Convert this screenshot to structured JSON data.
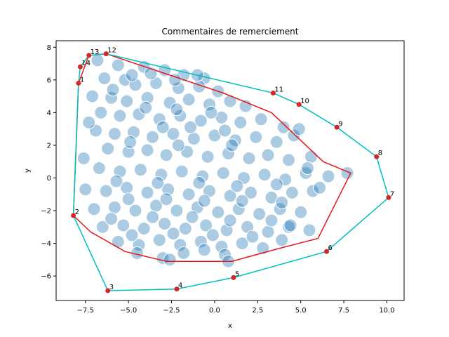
{
  "chart_data": {
    "type": "scatter",
    "title": "Commentaires de remerciement",
    "xlabel": "x",
    "ylabel": "y",
    "xlim": [
      -9.2,
      11.0
    ],
    "ylim": [
      -7.5,
      8.4
    ],
    "xticks": [
      -7.5,
      -5.0,
      -2.5,
      0.0,
      2.5,
      5.0,
      7.5,
      10.0
    ],
    "xtick_labels": [
      "−7.5",
      "−5.0",
      "−2.5",
      "0.0",
      "2.5",
      "5.0",
      "7.5",
      "10.0"
    ],
    "yticks": [
      -6,
      -4,
      -2,
      0,
      2,
      4,
      6,
      8
    ],
    "ytick_labels": [
      "−6",
      "−4",
      "−2",
      "0",
      "2",
      "4",
      "6",
      "8"
    ],
    "grid": false,
    "colors": {
      "scatter": "#1f77b4",
      "hull": "#00bfbf",
      "inner_path": "#e31a1c",
      "hull_points": "#d62728"
    },
    "hull_points": [
      {
        "label": "1",
        "x": -7.9,
        "y": 5.8
      },
      {
        "label": "2",
        "x": -8.2,
        "y": -2.3
      },
      {
        "label": "3",
        "x": -6.2,
        "y": -6.9
      },
      {
        "label": "4",
        "x": -2.2,
        "y": -6.8
      },
      {
        "label": "5",
        "x": 1.1,
        "y": -6.1
      },
      {
        "label": "6",
        "x": 6.5,
        "y": -4.5
      },
      {
        "label": "7",
        "x": 10.1,
        "y": -1.2
      },
      {
        "label": "8",
        "x": 9.4,
        "y": 1.3
      },
      {
        "label": "9",
        "x": 7.1,
        "y": 3.1
      },
      {
        "label": "10",
        "x": 4.9,
        "y": 4.5
      },
      {
        "label": "11",
        "x": 3.4,
        "y": 5.2
      },
      {
        "label": "12",
        "x": -6.3,
        "y": 7.6
      },
      {
        "label": "13",
        "x": -7.3,
        "y": 7.5
      },
      {
        "label": "14",
        "x": -7.8,
        "y": 6.8
      }
    ],
    "inner_path": [
      [
        -6.3,
        7.6
      ],
      [
        0.5,
        5.2
      ],
      [
        3.3,
        4.0
      ],
      [
        6.3,
        1.0
      ],
      [
        7.9,
        0.3
      ],
      [
        6.0,
        -3.7
      ],
      [
        3.8,
        -4.3
      ],
      [
        1.0,
        -5.1
      ],
      [
        -2.8,
        -5.1
      ],
      [
        -5.2,
        -4.5
      ],
      [
        -7.2,
        -3.3
      ],
      [
        -8.2,
        -2.3
      ],
      [
        -8.0,
        3.0
      ],
      [
        -7.9,
        5.8
      ],
      [
        -7.3,
        7.5
      ],
      [
        -6.3,
        7.6
      ]
    ],
    "scatter_points": [
      [
        -6.8,
        7.2
      ],
      [
        -5.6,
        6.9
      ],
      [
        -4.1,
        6.8
      ],
      [
        -2.9,
        6.6
      ],
      [
        -1.8,
        6.3
      ],
      [
        -0.6,
        6.1
      ],
      [
        -6.4,
        6.1
      ],
      [
        -5.2,
        6.0
      ],
      [
        -4.6,
        5.7
      ],
      [
        -3.4,
        5.8
      ],
      [
        -2.1,
        5.5
      ],
      [
        -0.9,
        5.6
      ],
      [
        0.2,
        5.3
      ],
      [
        -7.1,
        5.0
      ],
      [
        -6.0,
        4.9
      ],
      [
        -5.1,
        4.7
      ],
      [
        -3.9,
        4.9
      ],
      [
        -2.6,
        4.6
      ],
      [
        -1.5,
        4.8
      ],
      [
        -0.3,
        4.5
      ],
      [
        0.9,
        4.7
      ],
      [
        1.8,
        4.4
      ],
      [
        -6.6,
        4.0
      ],
      [
        -5.5,
        3.8
      ],
      [
        -4.4,
        3.9
      ],
      [
        -3.2,
        3.6
      ],
      [
        -2.0,
        3.8
      ],
      [
        -0.8,
        3.5
      ],
      [
        0.4,
        3.7
      ],
      [
        1.5,
        3.4
      ],
      [
        2.7,
        3.6
      ],
      [
        -6.9,
        2.9
      ],
      [
        -5.8,
        2.7
      ],
      [
        -4.7,
        2.8
      ],
      [
        -3.6,
        2.5
      ],
      [
        -2.4,
        2.7
      ],
      [
        -1.2,
        2.4
      ],
      [
        0.0,
        2.6
      ],
      [
        1.2,
        2.3
      ],
      [
        2.4,
        2.5
      ],
      [
        3.6,
        2.2
      ],
      [
        4.6,
        2.6
      ],
      [
        -6.2,
        1.8
      ],
      [
        -5.0,
        1.6
      ],
      [
        -3.9,
        1.7
      ],
      [
        -2.8,
        1.4
      ],
      [
        -1.6,
        1.6
      ],
      [
        -0.4,
        1.3
      ],
      [
        0.8,
        1.5
      ],
      [
        2.0,
        1.2
      ],
      [
        3.1,
        1.4
      ],
      [
        4.3,
        1.1
      ],
      [
        5.6,
        1.3
      ],
      [
        -6.7,
        0.6
      ],
      [
        -5.5,
        0.4
      ],
      [
        -4.3,
        0.5
      ],
      [
        -3.1,
        0.2
      ],
      [
        -1.9,
        0.4
      ],
      [
        -0.7,
        0.1
      ],
      [
        0.5,
        0.3
      ],
      [
        1.7,
        0.0
      ],
      [
        2.9,
        0.2
      ],
      [
        4.1,
        -0.1
      ],
      [
        5.3,
        0.3
      ],
      [
        6.6,
        0.1
      ],
      [
        7.7,
        0.3
      ],
      [
        -7.5,
        -0.7
      ],
      [
        -6.3,
        -0.8
      ],
      [
        -5.1,
        -0.6
      ],
      [
        -3.9,
        -0.9
      ],
      [
        -2.7,
        -0.7
      ],
      [
        -1.5,
        -1.0
      ],
      [
        -0.3,
        -0.8
      ],
      [
        0.9,
        -1.1
      ],
      [
        2.1,
        -0.9
      ],
      [
        3.3,
        -1.2
      ],
      [
        4.5,
        -0.9
      ],
      [
        5.7,
        -0.8
      ],
      [
        -7.0,
        -1.9
      ],
      [
        -5.8,
        -1.8
      ],
      [
        -4.6,
        -2.0
      ],
      [
        -3.4,
        -1.7
      ],
      [
        -2.2,
        -2.0
      ],
      [
        -1.0,
        -1.8
      ],
      [
        0.2,
        -2.1
      ],
      [
        1.4,
        -1.9
      ],
      [
        2.6,
        -2.2
      ],
      [
        3.8,
        -1.9
      ],
      [
        5.0,
        -2.1
      ],
      [
        -6.5,
        -3.0
      ],
      [
        -5.3,
        -2.9
      ],
      [
        -4.1,
        -3.1
      ],
      [
        -2.9,
        -2.8
      ],
      [
        -1.7,
        -3.1
      ],
      [
        -0.5,
        -2.9
      ],
      [
        0.7,
        -3.2
      ],
      [
        1.9,
        -3.0
      ],
      [
        3.1,
        -3.3
      ],
      [
        4.3,
        -3.0
      ],
      [
        5.5,
        -3.2
      ],
      [
        -5.6,
        -3.9
      ],
      [
        -4.4,
        -4.1
      ],
      [
        -3.2,
        -3.8
      ],
      [
        -2.0,
        -4.1
      ],
      [
        -0.8,
        -3.9
      ],
      [
        0.4,
        -4.2
      ],
      [
        1.6,
        -4.0
      ],
      [
        2.8,
        -4.3
      ],
      [
        3.9,
        -3.8
      ],
      [
        -4.5,
        -4.6
      ],
      [
        -3.0,
        -4.9
      ],
      [
        -1.8,
        -4.6
      ],
      [
        -0.6,
        -4.4
      ],
      [
        0.6,
        -4.7
      ],
      [
        -2.6,
        -5.0
      ],
      [
        0.8,
        -5.1
      ],
      [
        -4.8,
        6.3
      ],
      [
        -3.7,
        6.4
      ],
      [
        -5.9,
        5.4
      ],
      [
        -2.3,
        6.0
      ],
      [
        -1.0,
        6.3
      ],
      [
        4.0,
        3.1
      ],
      [
        4.9,
        3.0
      ],
      [
        5.4,
        0.6
      ],
      [
        6.1,
        -0.6
      ],
      [
        4.4,
        -2.9
      ],
      [
        -7.3,
        3.4
      ],
      [
        -7.6,
        1.2
      ],
      [
        -4.0,
        4.3
      ],
      [
        -2.2,
        4.2
      ],
      [
        -0.2,
        4.0
      ],
      [
        -3.0,
        3.1
      ],
      [
        -1.4,
        3.1
      ],
      [
        0.6,
        2.9
      ],
      [
        -4.9,
        2.2
      ],
      [
        -2.1,
        2.0
      ],
      [
        1.0,
        2.0
      ],
      [
        -5.7,
        -0.2
      ],
      [
        -3.3,
        -0.3
      ],
      [
        -0.9,
        -0.3
      ],
      [
        1.3,
        -0.5
      ],
      [
        3.6,
        -0.4
      ],
      [
        -5.0,
        -1.3
      ],
      [
        -2.8,
        -1.3
      ],
      [
        -0.6,
        -1.4
      ],
      [
        1.6,
        -1.4
      ],
      [
        3.9,
        -1.5
      ],
      [
        -6.0,
        -2.5
      ],
      [
        -3.6,
        -2.4
      ],
      [
        -1.3,
        -2.4
      ],
      [
        0.9,
        -2.6
      ],
      [
        3.3,
        -2.6
      ],
      [
        -4.8,
        -3.5
      ],
      [
        -2.4,
        -3.4
      ],
      [
        -0.1,
        -3.5
      ],
      [
        2.2,
        -3.6
      ]
    ]
  }
}
